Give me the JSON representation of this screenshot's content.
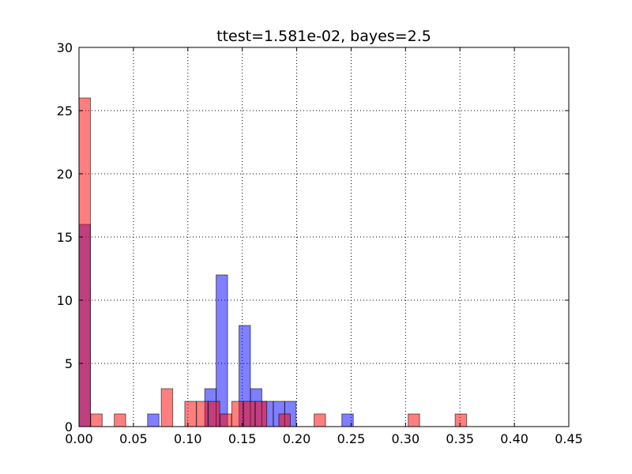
{
  "chart_data": {
    "type": "bar",
    "title": "ttest=1.581e-02, bayes=2.5",
    "xlabel": "",
    "ylabel": "",
    "xlim": [
      0.0,
      0.45
    ],
    "ylim": [
      0,
      30
    ],
    "grid": true,
    "bin_width": 0.0105,
    "xticks": [
      "0.00",
      "0.05",
      "0.10",
      "0.15",
      "0.20",
      "0.25",
      "0.30",
      "0.35",
      "0.40",
      "0.45"
    ],
    "yticks": [
      "0",
      "5",
      "10",
      "15",
      "20",
      "25",
      "30"
    ],
    "series": [
      {
        "color": "#0000ff",
        "opacity": 0.5,
        "bins": [
          {
            "x": 0.0,
            "count": 16
          },
          {
            "x": 0.0105,
            "count": 0
          },
          {
            "x": 0.021,
            "count": 0
          },
          {
            "x": 0.0315,
            "count": 0
          },
          {
            "x": 0.042,
            "count": 0
          },
          {
            "x": 0.0525,
            "count": 0
          },
          {
            "x": 0.063,
            "count": 1
          },
          {
            "x": 0.0735,
            "count": 0
          },
          {
            "x": 0.084,
            "count": 0
          },
          {
            "x": 0.0945,
            "count": 0
          },
          {
            "x": 0.105,
            "count": 0
          },
          {
            "x": 0.1155,
            "count": 3
          },
          {
            "x": 0.126,
            "count": 12
          },
          {
            "x": 0.1365,
            "count": 0
          },
          {
            "x": 0.147,
            "count": 8
          },
          {
            "x": 0.1575,
            "count": 3
          },
          {
            "x": 0.168,
            "count": 2
          },
          {
            "x": 0.1785,
            "count": 2
          },
          {
            "x": 0.189,
            "count": 2
          },
          {
            "x": 0.1995,
            "count": 0
          },
          {
            "x": 0.21,
            "count": 0
          },
          {
            "x": 0.2205,
            "count": 0
          },
          {
            "x": 0.231,
            "count": 0
          },
          {
            "x": 0.2415,
            "count": 1
          },
          {
            "x": 0.252,
            "count": 0
          }
        ]
      },
      {
        "color": "#ff0000",
        "opacity": 0.5,
        "bins": [
          {
            "x": 0.0,
            "count": 26
          },
          {
            "x": 0.0108,
            "count": 1
          },
          {
            "x": 0.0324,
            "count": 1
          },
          {
            "x": 0.0756,
            "count": 3
          },
          {
            "x": 0.0972,
            "count": 2
          },
          {
            "x": 0.108,
            "count": 2
          },
          {
            "x": 0.1188,
            "count": 2
          },
          {
            "x": 0.1296,
            "count": 1
          },
          {
            "x": 0.1404,
            "count": 2
          },
          {
            "x": 0.1512,
            "count": 2
          },
          {
            "x": 0.162,
            "count": 2
          },
          {
            "x": 0.1836,
            "count": 1
          },
          {
            "x": 0.216,
            "count": 1
          },
          {
            "x": 0.3024,
            "count": 1
          },
          {
            "x": 0.3456,
            "count": 1
          }
        ]
      }
    ]
  }
}
